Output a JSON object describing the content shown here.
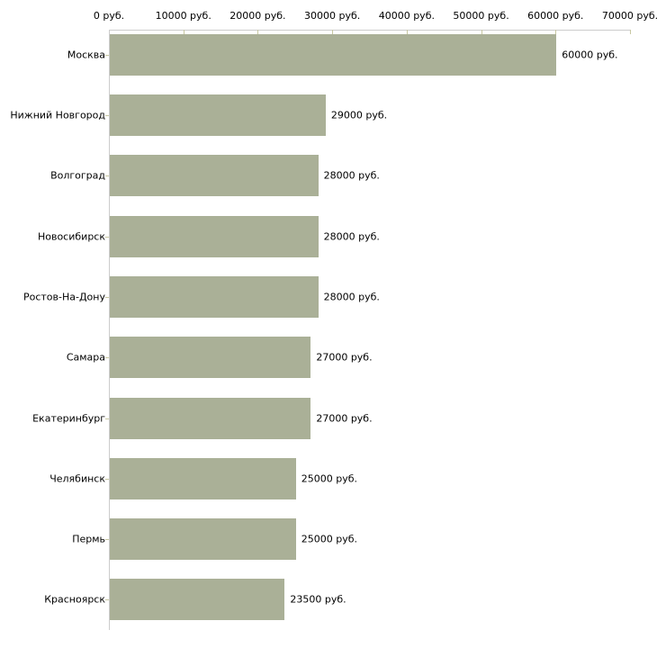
{
  "chart_data": {
    "type": "bar",
    "orientation": "horizontal",
    "title": "",
    "xlabel": "",
    "ylabel": "",
    "grid": false,
    "legend": null,
    "categories": [
      "Москва",
      "Нижний Новгород",
      "Волгоград",
      "Новосибирск",
      "Ростов-На-Дону",
      "Самара",
      "Екатеринбург",
      "Челябинск",
      "Пермь",
      "Красноярск"
    ],
    "values": [
      60000,
      29000,
      28000,
      28000,
      28000,
      27000,
      27000,
      25000,
      25000,
      23500
    ],
    "value_labels": [
      "60000 руб.",
      "29000 руб.",
      "28000 руб.",
      "28000 руб.",
      "28000 руб.",
      "27000 руб.",
      "27000 руб.",
      "25000 руб.",
      "25000 руб.",
      "23500 руб."
    ],
    "x_ticks": [
      0,
      10000,
      20000,
      30000,
      40000,
      50000,
      60000,
      70000
    ],
    "x_tick_labels": [
      "0 руб.",
      "10000 руб.",
      "20000 руб.",
      "30000 руб.",
      "40000 руб.",
      "50000 руб.",
      "60000 руб.",
      "70000 руб."
    ],
    "xlim": [
      0,
      70000
    ],
    "colors": {
      "bar": "#aab097",
      "axis_line": "#cccccc",
      "tick": "#c8c8a2",
      "text": "#000000",
      "background": "#ffffff"
    }
  }
}
